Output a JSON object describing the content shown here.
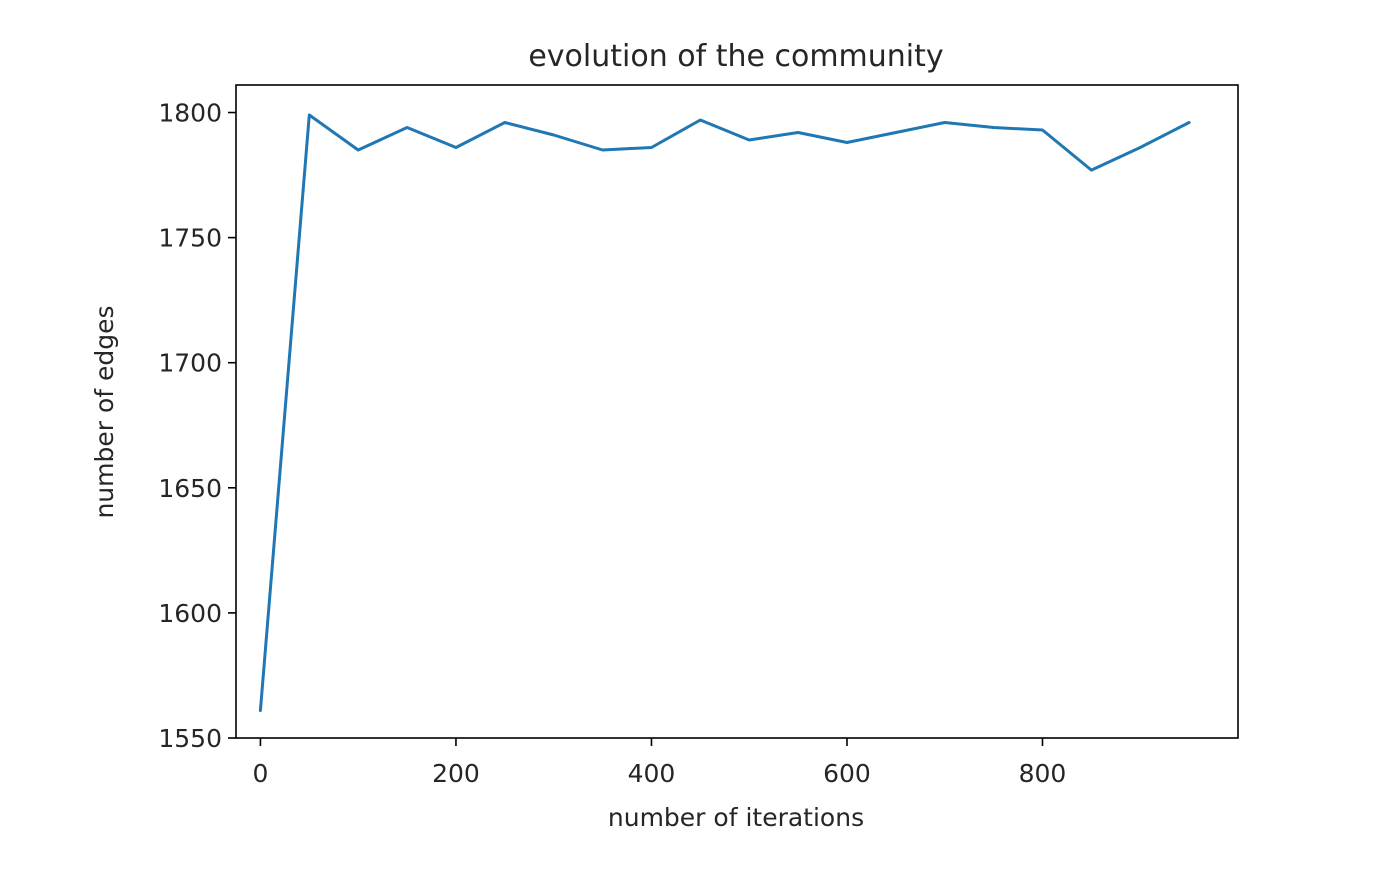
{
  "chart_data": {
    "type": "line",
    "title": "evolution of the community",
    "xlabel": "number of iterations",
    "ylabel": "number of edges",
    "xlim": [
      -25,
      1000
    ],
    "ylim": [
      1550,
      1811
    ],
    "xticks": [
      0,
      200,
      400,
      600,
      800
    ],
    "yticks": [
      1550,
      1600,
      1650,
      1700,
      1750,
      1800
    ],
    "grid": false,
    "colors": {
      "line": "#1f77b4",
      "axes": "#000000",
      "text": "#262626"
    },
    "series": [
      {
        "x": [
          0,
          50,
          100,
          150,
          200,
          250,
          300,
          350,
          400,
          450,
          500,
          550,
          600,
          650,
          700,
          750,
          800,
          850,
          900,
          950
        ],
        "y": [
          1561,
          1799,
          1785,
          1794,
          1786,
          1796,
          1791,
          1785,
          1786,
          1797,
          1789,
          1792,
          1788,
          1792,
          1796,
          1794,
          1793,
          1777,
          1786,
          1796
        ]
      }
    ]
  }
}
